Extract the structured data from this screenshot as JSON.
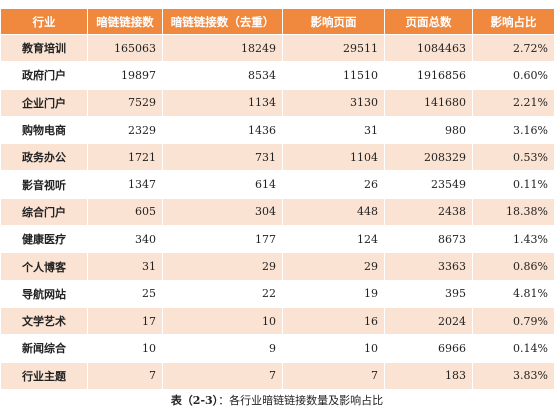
{
  "table": {
    "header": [
      "行业",
      "暗链链接数",
      "暗链链接数（去重）",
      "影响页面",
      "页面总数",
      "影响占比"
    ],
    "rows": [
      [
        "教育培训",
        "165063",
        "18249",
        "29511",
        "1084463",
        "2.72%"
      ],
      [
        "政府门户",
        "19897",
        "8534",
        "11510",
        "1916856",
        "0.60%"
      ],
      [
        "企业门户",
        "7529",
        "1134",
        "3130",
        "141680",
        "2.21%"
      ],
      [
        "购物电商",
        "2329",
        "1436",
        "31",
        "980",
        "3.16%"
      ],
      [
        "政务办公",
        "1721",
        "731",
        "1104",
        "208329",
        "0.53%"
      ],
      [
        "影音视听",
        "1347",
        "614",
        "26",
        "23549",
        "0.11%"
      ],
      [
        "综合门户",
        "605",
        "304",
        "448",
        "2438",
        "18.38%"
      ],
      [
        "健康医疗",
        "340",
        "177",
        "124",
        "8673",
        "1.43%"
      ],
      [
        "个人博客",
        "31",
        "29",
        "29",
        "3363",
        "0.86%"
      ],
      [
        "导航网站",
        "25",
        "22",
        "19",
        "395",
        "4.81%"
      ],
      [
        "文学艺术",
        "17",
        "10",
        "16",
        "2024",
        "0.79%"
      ],
      [
        "新闻综合",
        "10",
        "9",
        "10",
        "6966",
        "0.14%"
      ],
      [
        "行业主题",
        "7",
        "7",
        "7",
        "183",
        "3.83%"
      ]
    ]
  },
  "caption": {
    "label": "表（2-3）",
    "text": "：各行业暗链链接数量及影响占比"
  }
}
